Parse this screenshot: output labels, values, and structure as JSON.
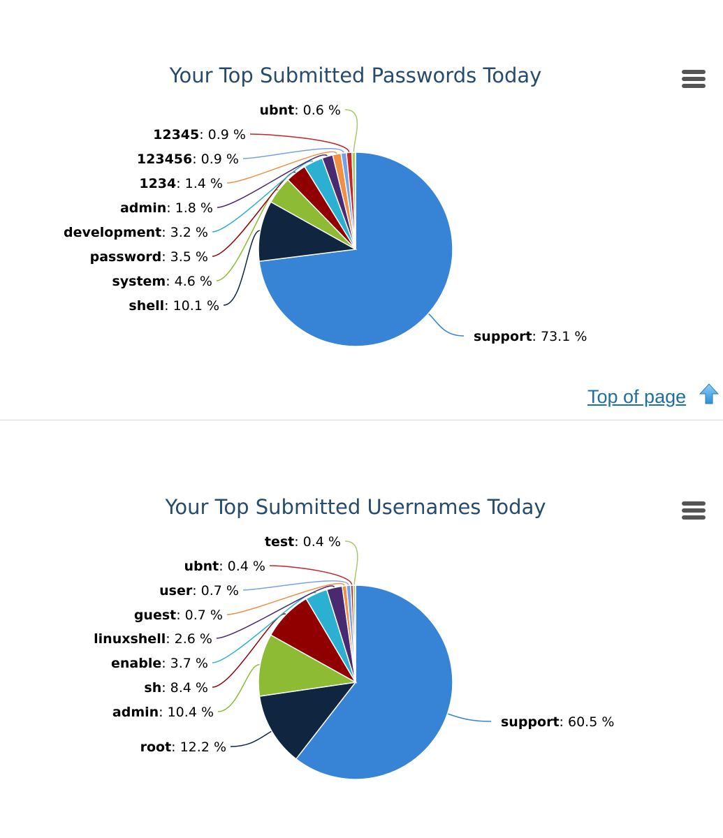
{
  "top_link": {
    "label": "Top of page",
    "icon": "up-arrow-icon"
  },
  "menu_icon": "hamburger-menu-icon",
  "chart_data": [
    {
      "type": "pie",
      "title": "Your Top Submitted Passwords Today",
      "categories": [
        "support",
        "shell",
        "system",
        "password",
        "development",
        "admin",
        "1234",
        "123456",
        "12345",
        "ubnt"
      ],
      "values": [
        73.1,
        10.1,
        4.6,
        3.5,
        3.2,
        1.8,
        1.4,
        0.9,
        0.9,
        0.6
      ],
      "colors": [
        "#3783d6",
        "#0f2540",
        "#8dbb34",
        "#910000",
        "#2bb0d1",
        "#492970",
        "#f28f43",
        "#77a1e5",
        "#c42525",
        "#a6c96a"
      ],
      "legend": "none"
    },
    {
      "type": "pie",
      "title": "Your Top Submitted Usernames Today",
      "categories": [
        "support",
        "root",
        "admin",
        "sh",
        "enable",
        "linuxshell",
        "guest",
        "user",
        "ubnt",
        "test"
      ],
      "values": [
        60.5,
        12.2,
        10.4,
        8.4,
        3.7,
        2.6,
        0.7,
        0.7,
        0.4,
        0.4
      ],
      "colors": [
        "#3783d6",
        "#0f2540",
        "#8dbb34",
        "#910000",
        "#2bb0d1",
        "#492970",
        "#f28f43",
        "#77a1e5",
        "#c42525",
        "#a6c96a"
      ],
      "legend": "none"
    }
  ]
}
